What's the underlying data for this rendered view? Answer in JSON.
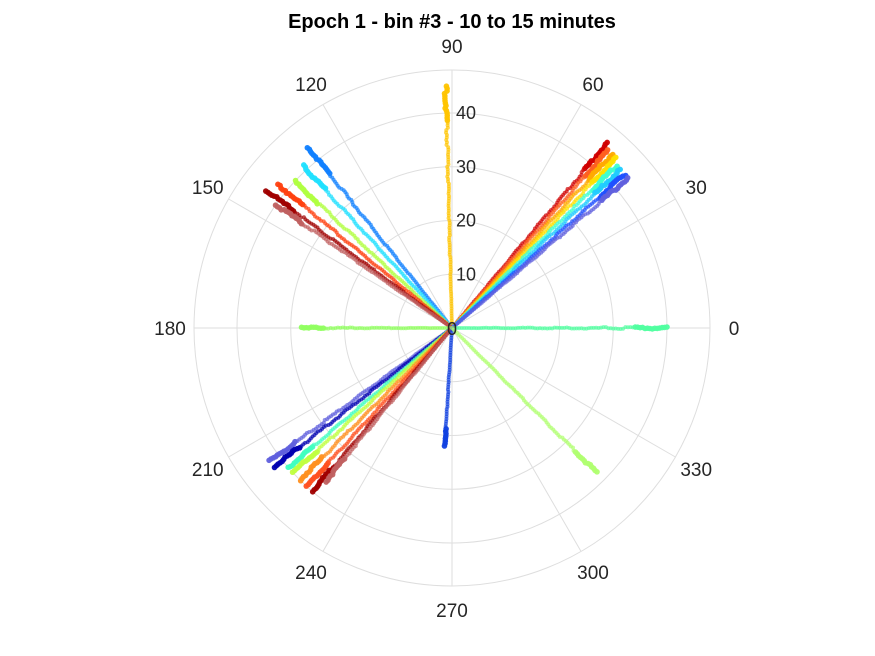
{
  "chart_data": {
    "type": "scatter",
    "coordinate_system": "polar",
    "title": "Epoch 1 - bin #3 - 10 to 15 minutes",
    "angular_axis": {
      "unit": "degrees",
      "direction": "counterclockwise",
      "zero_position": "right",
      "ticks": [
        "0",
        "30",
        "60",
        "90",
        "120",
        "150",
        "180",
        "210",
        "240",
        "270",
        "300",
        "330"
      ]
    },
    "radial_axis": {
      "rlim": [
        0,
        48
      ],
      "ticks": [
        "0",
        "10",
        "20",
        "30",
        "40"
      ],
      "tick_label_angle_deg": 90
    },
    "grid": true,
    "colormap": "jet",
    "rays": [
      {
        "theta": 91.5,
        "r_min": 0,
        "r_max": 45,
        "color": "#ffc400"
      },
      {
        "theta": 50.0,
        "r_min": 0,
        "r_max": 45,
        "color": "#d00000"
      },
      {
        "theta": 48.7,
        "r_min": 0,
        "r_max": 44,
        "color": "#ff6020"
      },
      {
        "theta": 47.3,
        "r_min": 0,
        "r_max": 44,
        "color": "#ffaa00"
      },
      {
        "theta": 46.0,
        "r_min": 0,
        "r_max": 44,
        "color": "#ffe000"
      },
      {
        "theta": 44.6,
        "r_min": 0,
        "r_max": 43,
        "color": "#40ffd0"
      },
      {
        "theta": 43.2,
        "r_min": 0,
        "r_max": 43,
        "color": "#20ccff"
      },
      {
        "theta": 41.6,
        "r_min": 0,
        "r_max": 43,
        "color": "#2050ff"
      },
      {
        "theta": 40.4,
        "r_min": 0,
        "r_max": 43,
        "color": "#6060dd"
      },
      {
        "theta": 128.5,
        "r_min": 0,
        "r_max": 43,
        "color": "#1080ff"
      },
      {
        "theta": 132.5,
        "r_min": 0,
        "r_max": 41,
        "color": "#20e0ff"
      },
      {
        "theta": 137.0,
        "r_min": 0,
        "r_max": 40,
        "color": "#b0ff40"
      },
      {
        "theta": 140.5,
        "r_min": 0,
        "r_max": 42,
        "color": "#ff4010"
      },
      {
        "theta": 143.5,
        "r_min": 0,
        "r_max": 43,
        "color": "#a00000"
      },
      {
        "theta": 145.0,
        "r_min": 0,
        "r_max": 40,
        "color": "#c06060"
      },
      {
        "theta": 180.0,
        "r_min": 0,
        "r_max": 28,
        "color": "#90ff60"
      },
      {
        "theta": 0.0,
        "r_min": 0,
        "r_max": 40,
        "color": "#50ffa0"
      },
      {
        "theta": 216.2,
        "r_min": 0,
        "r_max": 42,
        "color": "#6060dd"
      },
      {
        "theta": 218.0,
        "r_min": 0,
        "r_max": 42,
        "color": "#0000b0"
      },
      {
        "theta": 220.5,
        "r_min": 0,
        "r_max": 40,
        "color": "#40ffc0"
      },
      {
        "theta": 222.3,
        "r_min": 0,
        "r_max": 40,
        "color": "#c0ff40"
      },
      {
        "theta": 225.0,
        "r_min": 0,
        "r_max": 40,
        "color": "#ff9020"
      },
      {
        "theta": 227.5,
        "r_min": 0,
        "r_max": 40,
        "color": "#ff5020"
      },
      {
        "theta": 229.5,
        "r_min": 0,
        "r_max": 40,
        "color": "#a00000"
      },
      {
        "theta": 230.5,
        "r_min": 0,
        "r_max": 37,
        "color": "#c06060"
      },
      {
        "theta": 266.5,
        "r_min": 0,
        "r_max": 22,
        "color": "#1040e0"
      },
      {
        "theta": 315.0,
        "r_min": 0,
        "r_max": 38,
        "color": "#b0ff70"
      }
    ]
  }
}
